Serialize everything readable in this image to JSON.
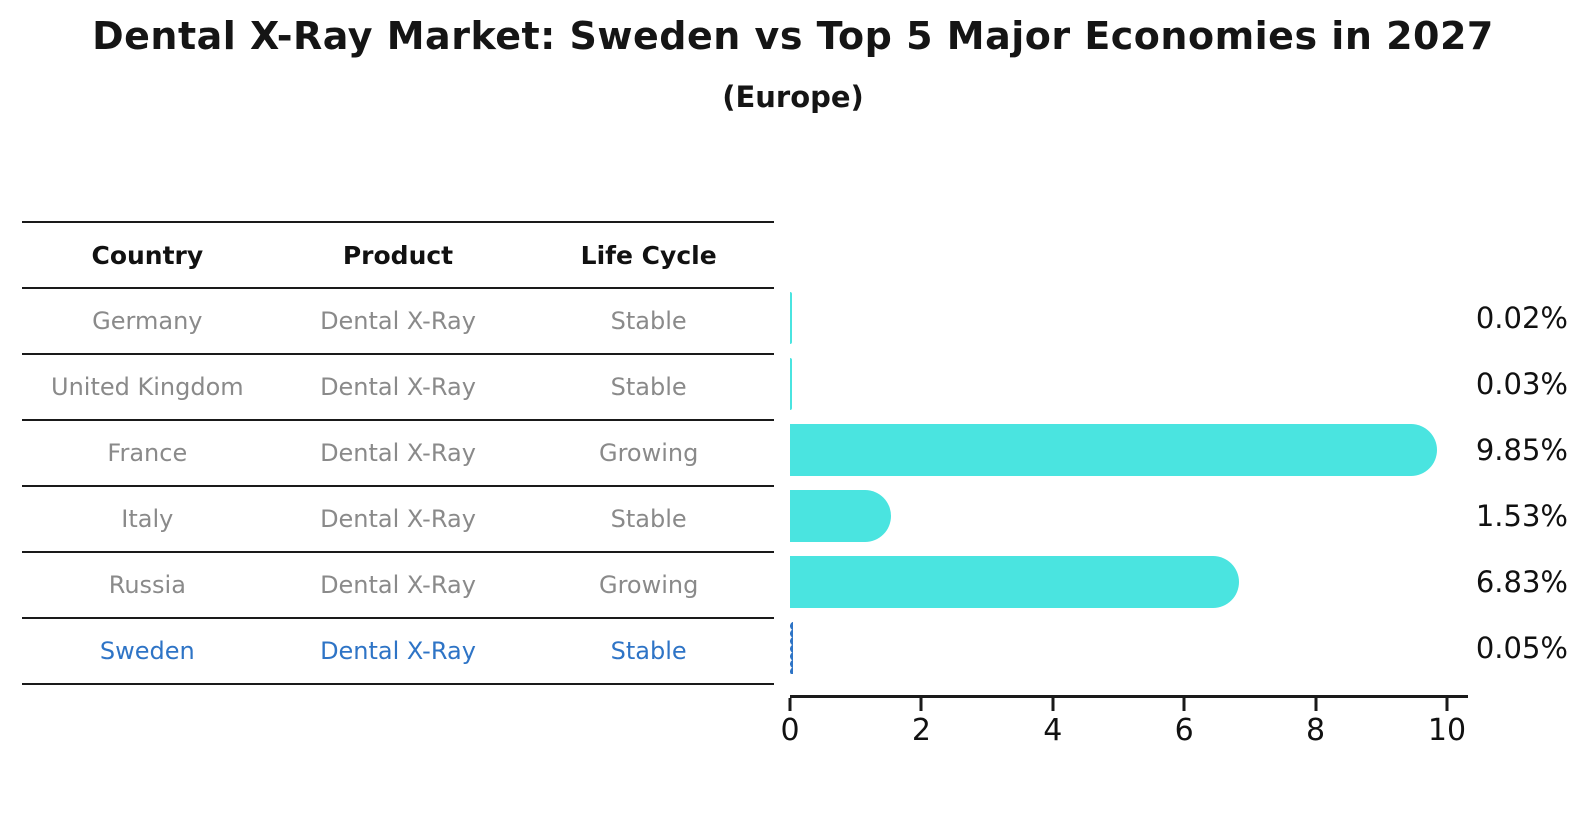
{
  "title": "Dental X-Ray Market: Sweden vs Top 5 Major Economies in 2027",
  "subtitle": "(Europe)",
  "table": {
    "headers": [
      "Country",
      "Product",
      "Life Cycle"
    ],
    "rows": [
      {
        "country": "Germany",
        "product": "Dental X-Ray",
        "life_cycle": "Stable",
        "highlighted": false
      },
      {
        "country": "United Kingdom",
        "product": "Dental X-Ray",
        "life_cycle": "Stable",
        "highlighted": false
      },
      {
        "country": "France",
        "product": "Dental X-Ray",
        "life_cycle": "Growing",
        "highlighted": false
      },
      {
        "country": "Italy",
        "product": "Dental X-Ray",
        "life_cycle": "Stable",
        "highlighted": false
      },
      {
        "country": "Russia",
        "product": "Dental X-Ray",
        "life_cycle": "Growing",
        "highlighted": false
      },
      {
        "country": "Sweden",
        "product": "Dental X-Ray",
        "life_cycle": "Stable",
        "highlighted": true
      }
    ]
  },
  "chart_data": {
    "type": "bar",
    "orientation": "horizontal",
    "title": "Dental X-Ray Market: Sweden vs Top 5 Major Economies in 2027",
    "subtitle": "(Europe)",
    "categories": [
      "Germany",
      "United Kingdom",
      "France",
      "Italy",
      "Russia",
      "Sweden"
    ],
    "values": [
      0.02,
      0.03,
      9.85,
      1.53,
      6.83,
      0.05
    ],
    "value_labels": [
      "0.02%",
      "0.03%",
      "9.85%",
      "1.53%",
      "6.83%",
      "0.05%"
    ],
    "xlim": [
      0,
      10
    ],
    "x_ticks": [
      "0",
      "2",
      "4",
      "6",
      "8",
      "10"
    ],
    "grid": false,
    "legend": false,
    "bar_color": "#4ae4e0",
    "highlight_color": "#2e74c6",
    "highlight_category": "Sweden",
    "text_color": "#8a8a8a"
  }
}
